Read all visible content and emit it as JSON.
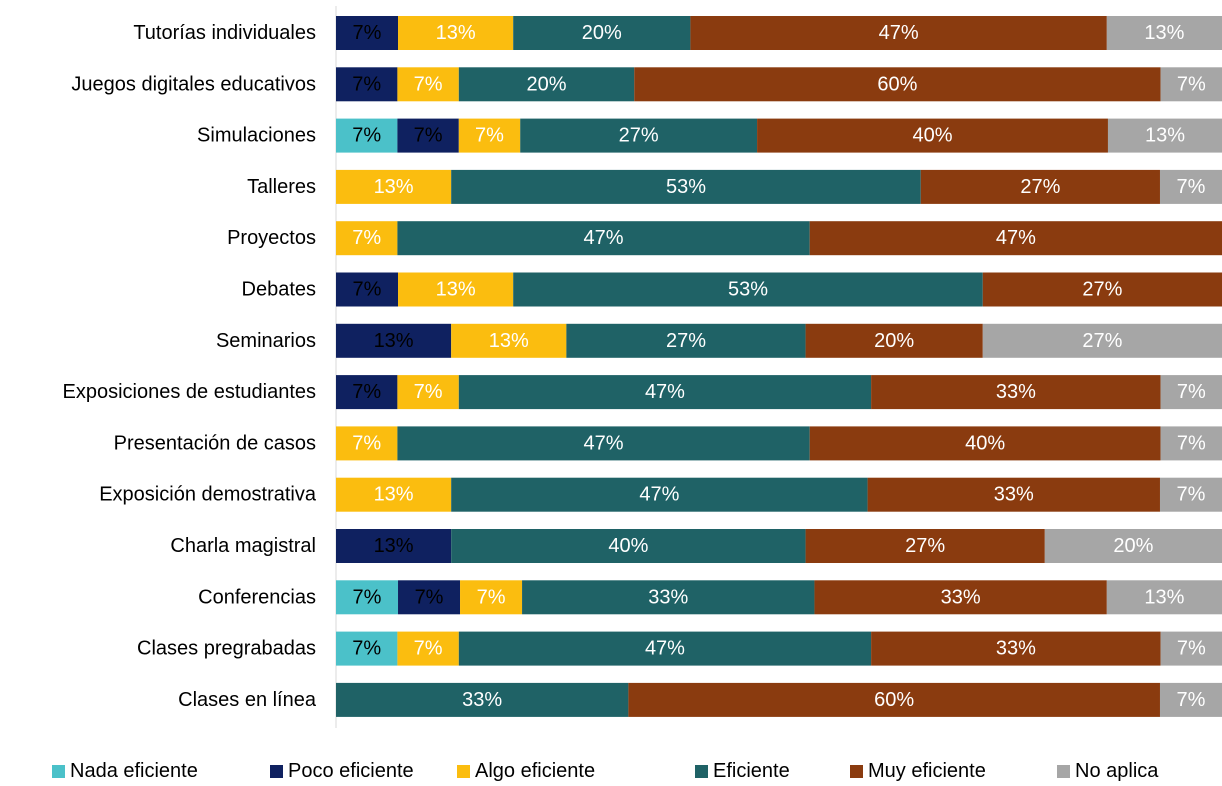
{
  "chart_data": {
    "type": "bar",
    "orientation": "horizontal",
    "stacked": "percent",
    "categories": [
      "Tutorías individuales",
      "Juegos digitales educativos",
      "Simulaciones",
      "Talleres",
      "Proyectos",
      "Debates",
      "Seminarios",
      "Exposiciones de estudiantes",
      "Presentación de casos",
      "Exposición demostrativa",
      "Charla magistral",
      "Conferencias",
      "Clases pregrabadas",
      "Clases en línea"
    ],
    "series": [
      {
        "name": "Nada eficiente",
        "color": "#4bc1c9",
        "label_color": "#000000",
        "values": [
          0,
          0,
          7,
          0,
          0,
          0,
          0,
          0,
          0,
          0,
          0,
          7,
          7,
          0
        ]
      },
      {
        "name": "Poco eficiente",
        "color": "#0f2160",
        "label_color": "#000000",
        "values": [
          7,
          7,
          7,
          0,
          0,
          7,
          13,
          7,
          0,
          0,
          13,
          7,
          0,
          0
        ]
      },
      {
        "name": "Algo eficiente",
        "color": "#fbbd0f",
        "label_color": "#ffffff",
        "values": [
          13,
          7,
          7,
          13,
          7,
          13,
          13,
          7,
          7,
          13,
          0,
          7,
          7,
          0
        ]
      },
      {
        "name": "Eficiente",
        "color": "#1f6266",
        "label_color": "#ffffff",
        "values": [
          20,
          20,
          27,
          53,
          47,
          53,
          27,
          47,
          47,
          47,
          40,
          33,
          47,
          33
        ]
      },
      {
        "name": "Muy eficiente",
        "color": "#8a3b0f",
        "label_color": "#ffffff",
        "values": [
          47,
          60,
          40,
          27,
          47,
          27,
          20,
          33,
          40,
          33,
          27,
          33,
          33,
          60
        ]
      },
      {
        "name": "No aplica",
        "color": "#a6a6a6",
        "label_color": "#ffffff",
        "values": [
          13,
          7,
          13,
          7,
          0,
          0,
          27,
          7,
          7,
          7,
          20,
          13,
          7,
          7
        ]
      }
    ],
    "value_suffix": "%",
    "xlim": [
      0,
      100
    ],
    "title": "",
    "xlabel": "",
    "ylabel": "",
    "grid": false,
    "legend_position": "bottom"
  }
}
